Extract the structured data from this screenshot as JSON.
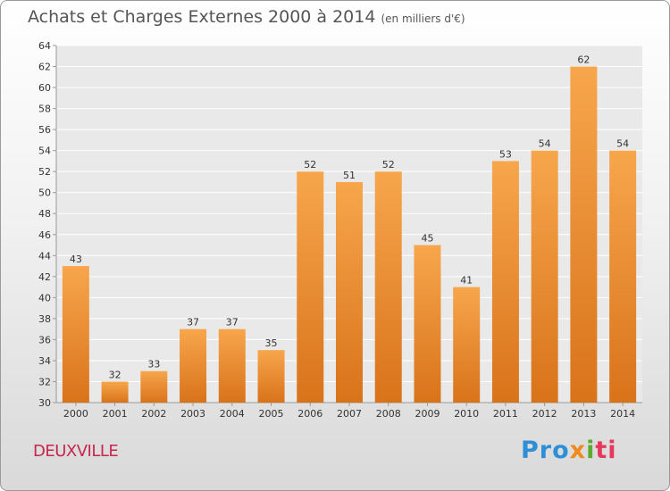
{
  "title": "Achats et Charges Externes 2000 à 2014",
  "subtitle": "(en milliers d'€)",
  "location": "DEUXVILLE",
  "brand": [
    "Pro",
    "x",
    "i",
    "ti"
  ],
  "colors": {
    "bar_top": "#f7a64c",
    "bar_bottom": "#d9731a",
    "location": "#c8264e"
  },
  "chart_data": {
    "type": "bar",
    "title": "Achats et Charges Externes 2000 à 2014",
    "subtitle": "(en milliers d'€)",
    "categories": [
      "2000",
      "2001",
      "2002",
      "2003",
      "2004",
      "2005",
      "2006",
      "2007",
      "2008",
      "2009",
      "2010",
      "2011",
      "2012",
      "2013",
      "2014"
    ],
    "values": [
      43,
      32,
      33,
      37,
      37,
      35,
      52,
      51,
      52,
      45,
      41,
      53,
      54,
      62,
      54
    ],
    "ylim": [
      30,
      64
    ],
    "yticks": [
      30,
      32,
      34,
      36,
      38,
      40,
      42,
      44,
      46,
      48,
      50,
      52,
      54,
      56,
      58,
      60,
      62,
      64
    ],
    "grid": true,
    "xlabel": "",
    "ylabel": ""
  }
}
